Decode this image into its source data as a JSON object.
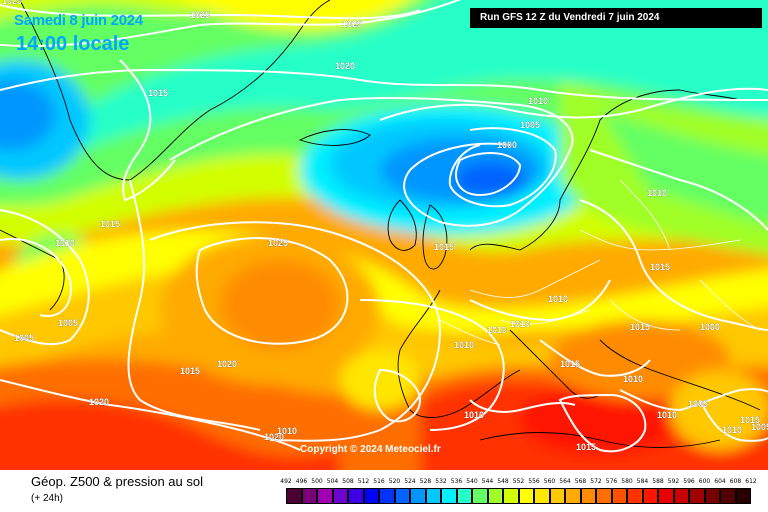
{
  "header": {
    "date_line": "Samedi 8 juin 2024",
    "time_line": "14:00 locale",
    "run_info": "Run GFS 12 Z du Vendredi 7 juin 2024"
  },
  "map": {
    "copyright": "Copyright © 2024 Meteociel.fr",
    "isobar_labels": [
      "1020",
      "1025",
      "1025",
      "1020",
      "1015",
      "1010",
      "1005",
      "1000",
      "1010",
      "1015",
      "1025",
      "1015",
      "1010",
      "1005",
      "1005",
      "1015",
      "1010",
      "1015",
      "1010",
      "1010",
      "1010",
      "1010",
      "1015",
      "1010",
      "1015",
      "1010",
      "1020",
      "1015",
      "1020",
      "1020",
      "1010",
      "1010",
      "1005",
      "1005",
      "1015",
      "1000"
    ]
  },
  "footer": {
    "title": "Géop. Z500 & pression au sol",
    "subtitle": "(+ 24h)"
  },
  "color_scale": {
    "ticks": [
      "492",
      "496",
      "500",
      "504",
      "508",
      "512",
      "516",
      "520",
      "524",
      "528",
      "532",
      "536",
      "540",
      "544",
      "548",
      "552",
      "556",
      "560",
      "564",
      "568",
      "572",
      "576",
      "580",
      "584",
      "588",
      "592",
      "596",
      "600",
      "604",
      "608",
      "612"
    ],
    "colors": [
      "#4b0036",
      "#7a0078",
      "#a000b4",
      "#6e00d2",
      "#3c00e6",
      "#0000ff",
      "#0032ff",
      "#0064ff",
      "#0096ff",
      "#00c8ff",
      "#00f0ff",
      "#28ffc8",
      "#64ff64",
      "#a0ff28",
      "#d2ff00",
      "#ffff00",
      "#ffe600",
      "#ffc800",
      "#ffaa00",
      "#ff8c00",
      "#ff6e00",
      "#ff5000",
      "#ff3200",
      "#ff1400",
      "#e60000",
      "#c80000",
      "#a00000",
      "#780000",
      "#500000",
      "#280000"
    ]
  }
}
